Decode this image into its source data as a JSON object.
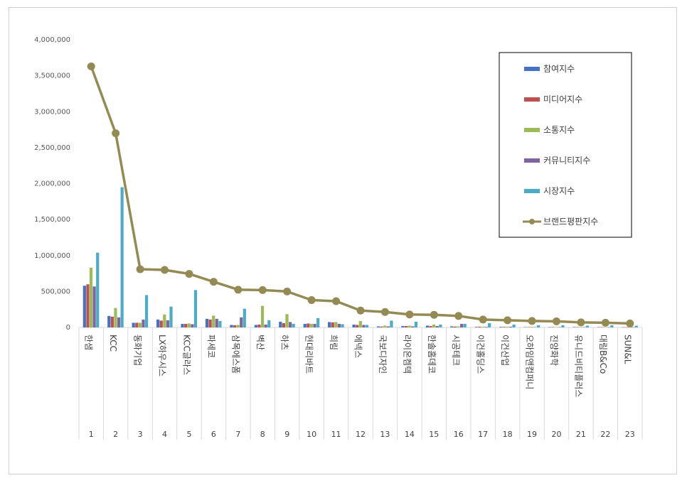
{
  "chart_data": {
    "type": "bar",
    "categories": [
      "한샘",
      "KCC",
      "동화기업",
      "LX하우시스",
      "KCC글라스",
      "파세코",
      "삼목에스폼",
      "벽산",
      "하츠",
      "현대리바트",
      "희림",
      "에넥스",
      "국보디자인",
      "라이온켐텍",
      "한솔홈데코",
      "시공테크",
      "이건홀딩스",
      "이건산업",
      "오하임앤컴퍼니",
      "진양화학",
      "유니드비티플러스",
      "대림B&Co",
      "SUN&L"
    ],
    "ranks": [
      "1",
      "2",
      "3",
      "4",
      "5",
      "6",
      "7",
      "8",
      "9",
      "10",
      "11",
      "12",
      "13",
      "14",
      "15",
      "16",
      "17",
      "18",
      "19",
      "20",
      "21",
      "22",
      "23"
    ],
    "ylim": [
      0,
      4000000
    ],
    "yticks": [
      "0",
      "500,000",
      "1,000,000",
      "1,500,000",
      "2,000,000",
      "2,500,000",
      "3,000,000",
      "3,500,000",
      "4,000,000"
    ],
    "legend_position": "top-right",
    "series": [
      {
        "name": "참여지수",
        "kind": "bar",
        "color": "#4472C4",
        "values": [
          580000,
          160000,
          65000,
          110000,
          50000,
          120000,
          35000,
          35000,
          80000,
          50000,
          75000,
          40000,
          15000,
          20000,
          25000,
          15000,
          8000,
          8000,
          5000,
          5000,
          6000,
          5000,
          3000
        ]
      },
      {
        "name": "미디어지수",
        "kind": "bar",
        "color": "#C0504D",
        "values": [
          600000,
          150000,
          65000,
          95000,
          50000,
          110000,
          30000,
          40000,
          60000,
          55000,
          70000,
          35000,
          12000,
          20000,
          20000,
          12000,
          10000,
          8000,
          5000,
          5000,
          5000,
          5000,
          3000
        ]
      },
      {
        "name": "소통지수",
        "kind": "bar",
        "color": "#9BBB59",
        "values": [
          830000,
          270000,
          65000,
          180000,
          55000,
          165000,
          35000,
          300000,
          185000,
          50000,
          75000,
          90000,
          25000,
          25000,
          40000,
          15000,
          10000,
          10000,
          8000,
          5000,
          6000,
          5000,
          3000
        ]
      },
      {
        "name": "커뮤니티지수",
        "kind": "bar",
        "color": "#8064A2",
        "values": [
          570000,
          140000,
          110000,
          100000,
          45000,
          120000,
          140000,
          40000,
          75000,
          50000,
          50000,
          35000,
          15000,
          15000,
          20000,
          50000,
          8000,
          10000,
          5000,
          5000,
          5000,
          5000,
          3000
        ]
      },
      {
        "name": "시장지수",
        "kind": "bar",
        "color": "#4BACC6",
        "values": [
          1040000,
          1950000,
          450000,
          290000,
          520000,
          90000,
          260000,
          100000,
          50000,
          130000,
          45000,
          35000,
          95000,
          80000,
          40000,
          50000,
          60000,
          40000,
          30000,
          30000,
          25000,
          30000,
          25000
        ]
      },
      {
        "name": "브랜드평판지수",
        "kind": "line",
        "color": "#948A54",
        "values": [
          3630000,
          2700000,
          810000,
          800000,
          745000,
          635000,
          525000,
          520000,
          500000,
          380000,
          365000,
          235000,
          215000,
          180000,
          175000,
          160000,
          110000,
          100000,
          90000,
          85000,
          70000,
          65000,
          55000
        ]
      }
    ]
  }
}
